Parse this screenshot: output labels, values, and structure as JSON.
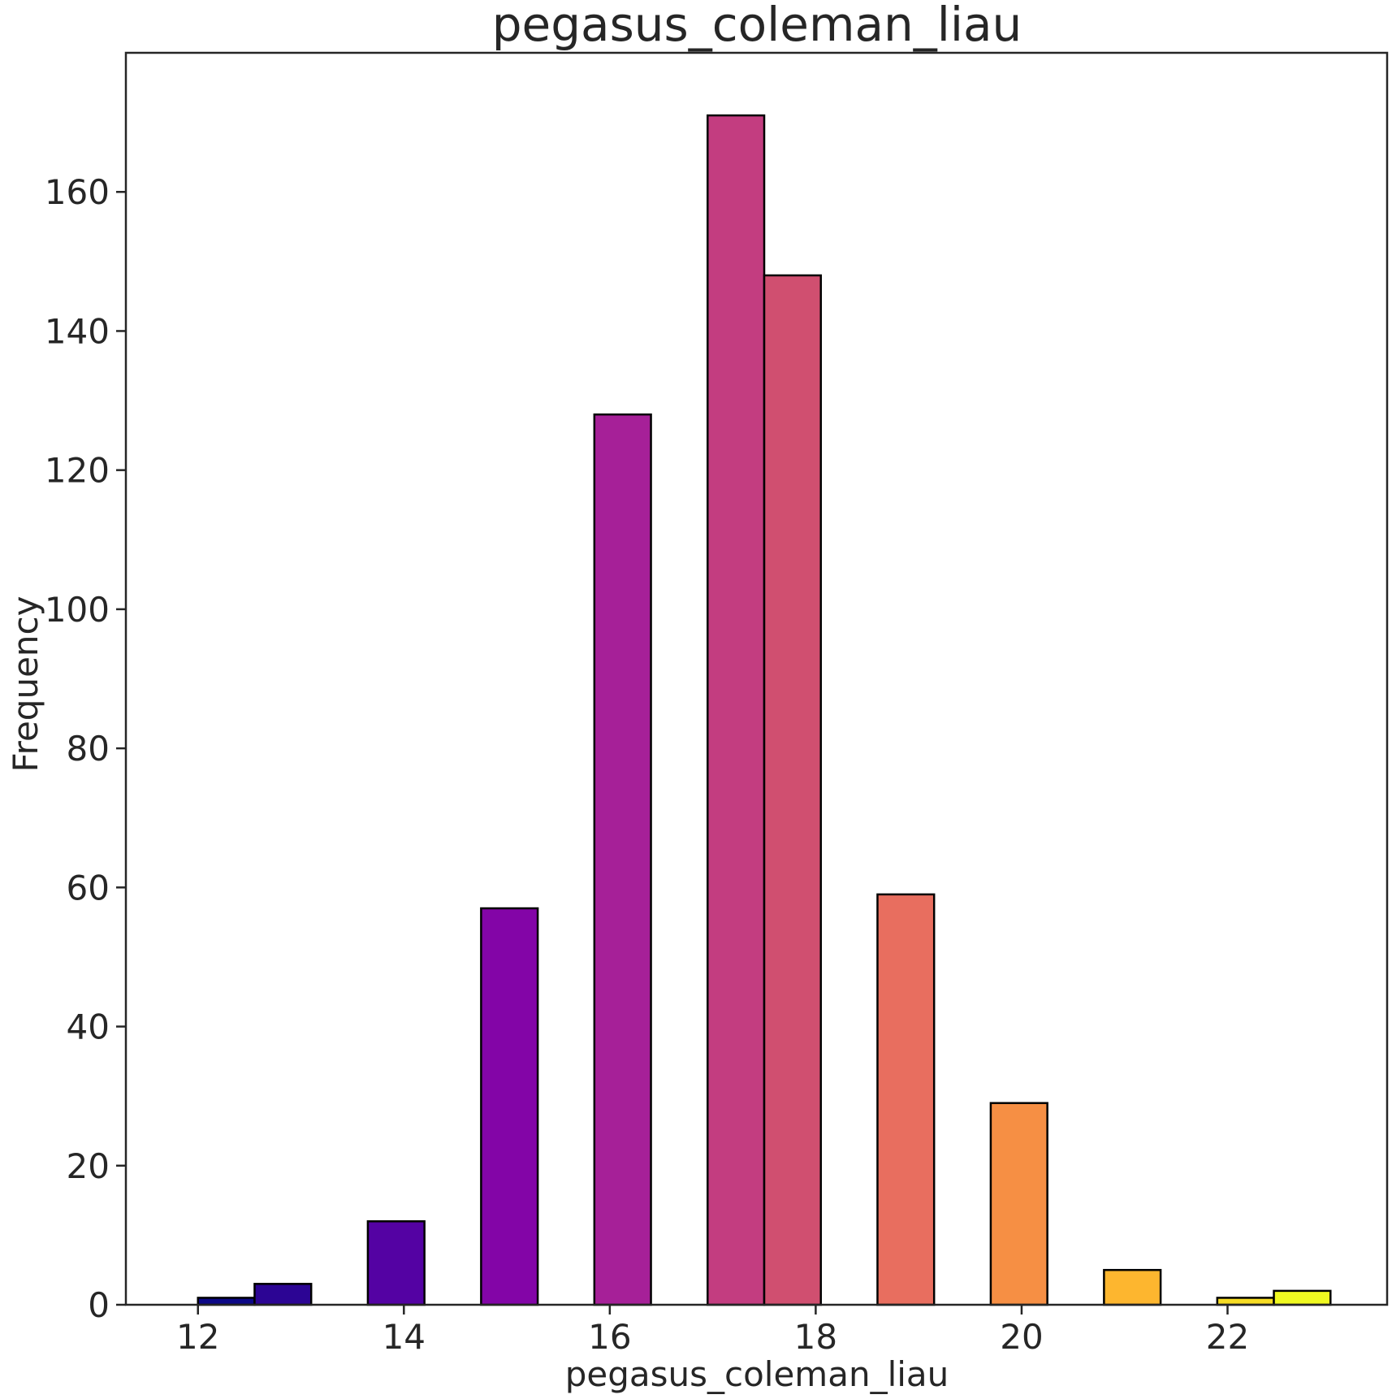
{
  "chart_data": {
    "type": "bar",
    "title": "pegasus_coleman_liau",
    "xlabel": "pegasus_coleman_liau",
    "ylabel": "Frequency",
    "xlim": [
      11.3,
      23.55
    ],
    "ylim": [
      0,
      180
    ],
    "grid": false,
    "legend": "none",
    "x_ticks": [
      12,
      14,
      16,
      18,
      20,
      22
    ],
    "y_ticks": [
      0,
      20,
      40,
      60,
      80,
      100,
      120,
      140,
      160
    ],
    "bins": [
      {
        "x0": 12.0,
        "x1": 12.55,
        "value": 1,
        "color": "#0d0887"
      },
      {
        "x0": 12.55,
        "x1": 13.1,
        "value": 3,
        "color": "#2c0594"
      },
      {
        "x0": 13.65,
        "x1": 14.2,
        "value": 12,
        "color": "#5402a3"
      },
      {
        "x0": 14.75,
        "x1": 15.3,
        "value": 57,
        "color": "#8305a7"
      },
      {
        "x0": 15.85,
        "x1": 16.4,
        "value": 128,
        "color": "#a62098"
      },
      {
        "x0": 16.95,
        "x1": 17.5,
        "value": 171,
        "color": "#c33d80"
      },
      {
        "x0": 17.5,
        "x1": 18.05,
        "value": 148,
        "color": "#d04f70"
      },
      {
        "x0": 18.6,
        "x1": 19.15,
        "value": 59,
        "color": "#e86e5f"
      },
      {
        "x0": 19.7,
        "x1": 20.25,
        "value": 29,
        "color": "#f68f44"
      },
      {
        "x0": 20.8,
        "x1": 21.35,
        "value": 5,
        "color": "#fdb62f"
      },
      {
        "x0": 21.9,
        "x1": 22.45,
        "value": 1,
        "color": "#f6dc24"
      },
      {
        "x0": 22.45,
        "x1": 23.0,
        "value": 2,
        "color": "#f0f921"
      }
    ]
  }
}
